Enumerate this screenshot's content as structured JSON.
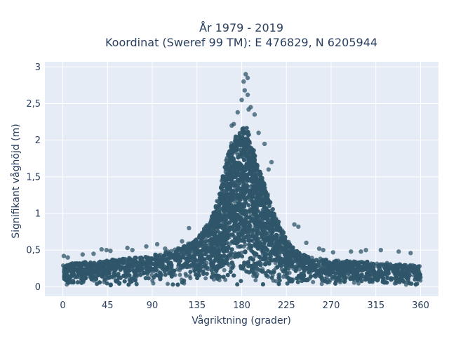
{
  "chart_data": {
    "type": "scatter",
    "title_line1": "År 1979 - 2019",
    "title_line2": "Koordinat (Sweref 99 TM): E 476829, N 6205944",
    "xlabel": "Vågriktning (grader)",
    "ylabel": "Signifikant våghöjd (m)",
    "xlim": [
      -18,
      378
    ],
    "ylim": [
      -0.13,
      3.07
    ],
    "x_ticks": [
      0,
      45,
      90,
      135,
      180,
      225,
      270,
      315,
      360
    ],
    "y_ticks": [
      0,
      0.5,
      1,
      1.5,
      2,
      2.5,
      3
    ],
    "y_tick_labels": [
      "0",
      "0,5",
      "1",
      "1,5",
      "2",
      "2,5",
      "3"
    ],
    "grid": true,
    "marker_color": "#2f5569",
    "plot_background": "#e5ecf6",
    "envelope": {
      "directions": [
        0,
        10,
        20,
        30,
        45,
        60,
        75,
        90,
        100,
        110,
        120,
        130,
        140,
        150,
        155,
        160,
        165,
        170,
        175,
        180,
        183,
        186,
        190,
        195,
        200,
        205,
        210,
        215,
        220,
        225,
        230,
        240,
        250,
        260,
        270,
        285,
        300,
        315,
        330,
        345,
        360
      ],
      "typical_max_height": [
        0.3,
        0.32,
        0.33,
        0.33,
        0.36,
        0.38,
        0.4,
        0.42,
        0.45,
        0.5,
        0.55,
        0.62,
        0.75,
        0.95,
        1.15,
        1.45,
        1.75,
        1.95,
        2.05,
        2.1,
        2.15,
        2.1,
        1.9,
        1.7,
        1.5,
        1.3,
        1.1,
        0.95,
        0.78,
        0.66,
        0.55,
        0.45,
        0.4,
        0.38,
        0.36,
        0.35,
        0.34,
        0.32,
        0.32,
        0.3,
        0.3
      ]
    },
    "outliers": [
      {
        "x": 184,
        "y": 2.9
      },
      {
        "x": 186,
        "y": 2.85
      },
      {
        "x": 182,
        "y": 2.8
      },
      {
        "x": 183,
        "y": 2.68
      },
      {
        "x": 186,
        "y": 2.62
      },
      {
        "x": 180,
        "y": 2.55
      },
      {
        "x": 189,
        "y": 2.45
      },
      {
        "x": 187,
        "y": 2.42
      },
      {
        "x": 176,
        "y": 2.38
      },
      {
        "x": 193,
        "y": 2.35
      },
      {
        "x": 172,
        "y": 2.22
      },
      {
        "x": 197,
        "y": 2.1
      },
      {
        "x": 170,
        "y": 2.2
      },
      {
        "x": 203,
        "y": 1.95
      },
      {
        "x": 210,
        "y": 1.7
      },
      {
        "x": 233,
        "y": 0.85
      },
      {
        "x": 237,
        "y": 0.82
      },
      {
        "x": 207,
        "y": 1.6
      },
      {
        "x": 127,
        "y": 0.8
      },
      {
        "x": 95,
        "y": 0.58
      },
      {
        "x": 65,
        "y": 0.53
      },
      {
        "x": 70,
        "y": 0.5
      },
      {
        "x": 44,
        "y": 0.5
      },
      {
        "x": 39,
        "y": 0.51
      },
      {
        "x": 48,
        "y": 0.49
      },
      {
        "x": 31,
        "y": 0.45
      },
      {
        "x": 20,
        "y": 0.44
      },
      {
        "x": 84,
        "y": 0.55
      },
      {
        "x": 103,
        "y": 0.52
      },
      {
        "x": 258,
        "y": 0.52
      },
      {
        "x": 262,
        "y": 0.5
      },
      {
        "x": 272,
        "y": 0.47
      },
      {
        "x": 290,
        "y": 0.48
      },
      {
        "x": 300,
        "y": 0.48
      },
      {
        "x": 305,
        "y": 0.5
      },
      {
        "x": 320,
        "y": 0.5
      },
      {
        "x": 338,
        "y": 0.48
      },
      {
        "x": 350,
        "y": 0.46
      },
      {
        "x": 1,
        "y": 0.42
      },
      {
        "x": 5,
        "y": 0.4
      },
      {
        "x": 245,
        "y": 0.6
      },
      {
        "x": 120,
        "y": 0.62
      }
    ]
  }
}
